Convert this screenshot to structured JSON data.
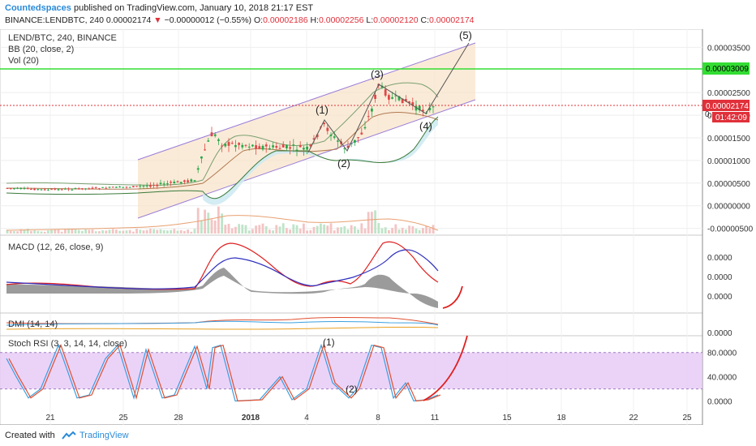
{
  "header": {
    "author": "Countedspaces",
    "published": "published on TradingView.com, January 10, 2018 21:17 EST",
    "symbol_line": "BINANCE:LENDBTC, 240",
    "last": "0.00002174",
    "change": "−0.00000012 (−0.55%)",
    "o_label": "O:",
    "o_val": "0.00002186",
    "h_label": "H:",
    "h_val": "0.00002256",
    "l_label": "L:",
    "l_val": "0.00002120",
    "c_label": "C:",
    "c_val": "0.00002174"
  },
  "legend": {
    "symbol": "LEND/BTC, 240, BINANCE",
    "bb": "BB (20, close, 2)",
    "vol": "Vol (20)",
    "macd": "MACD (12, 26, close, 9)",
    "dmi": "DMI (14, 14)",
    "stoch": "Stoch RSI (3, 3, 14, 14, close)"
  },
  "footer": {
    "created_with": "Created with",
    "brand": "TradingView"
  },
  "colors": {
    "green_level": "#33dd33",
    "price_tag": "#e0303a",
    "macd": "#e02020",
    "signal": "#3030c0",
    "stoch_k": "#3aa0e0",
    "stoch_d": "#e05030",
    "stoch_band": "#e6c8f6",
    "channel": "#f8e2c8"
  },
  "chart_data": {
    "type": "line",
    "x_ticks": [
      "21",
      "25",
      "28",
      "2018",
      "4",
      "8",
      "11",
      "15",
      "18",
      "22",
      "25"
    ],
    "price_axis": {
      "ticks": [
        "0.00003500",
        "0.00002500",
        "0.00002000",
        "0.00001500",
        "0.00001000",
        "0.00000500",
        "0.00000000",
        "-0.00000500"
      ],
      "values": [
        3.5e-05,
        2.5e-05,
        2e-05,
        1.5e-05,
        1e-05,
        5e-06,
        0,
        -5e-06
      ],
      "range": [
        -6.5e-06,
        3.9e-05
      ],
      "green_level": "0.00003009",
      "green_level_value": 3.009e-05,
      "last_price": "0.00002174",
      "last_price_value": 2.174e-05,
      "countdown": "01:42:09",
      "partial_tick": "0."
    },
    "wave_labels": [
      "(1)",
      "(2)",
      "(3)",
      "(4)",
      "(5)"
    ],
    "macd_axis": {
      "ticks": [
        "0.0000",
        "0.0000",
        "0.0000"
      ]
    },
    "dmi_axis": {
      "ticks": [
        "0.0000"
      ]
    },
    "stoch_axis": {
      "ticks": [
        "80.0000",
        "40.0000",
        "0.0000"
      ],
      "values": [
        80,
        40,
        0
      ],
      "range": [
        -10,
        105
      ],
      "band": [
        80,
        20
      ]
    },
    "stoch_labels": [
      "(1)",
      "(2)"
    ]
  }
}
